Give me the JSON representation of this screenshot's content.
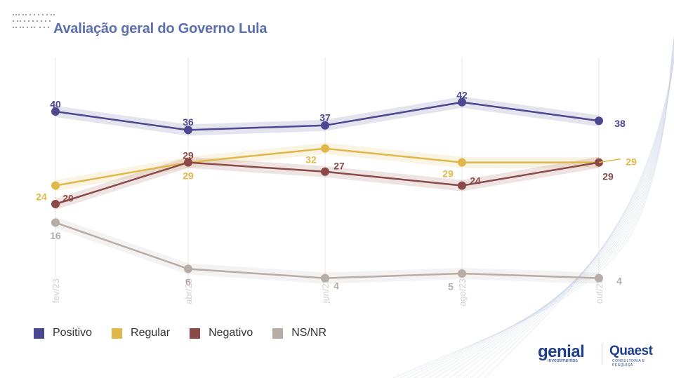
{
  "title": "Avaliação geral do Governo Lula",
  "brand": {
    "genial_name": "genial",
    "genial_sub": "investimentos",
    "quaest_name": "Quaest",
    "quaest_sub": "CONSULTORIA E PESQUISA"
  },
  "colors": {
    "Positivo": "#4b4791",
    "Regular": "#e0b84a",
    "Negativo": "#8b4a48",
    "NS/NR": "#b8aca7",
    "grid": "#e6e6e6",
    "tick": "#cfcfcf",
    "title": "#5b6fae"
  },
  "chart_data": {
    "type": "line",
    "title": "Avaliação geral do Governo Lula",
    "x": [
      "fev/23",
      "abr/23",
      "jun/23",
      "ago/23",
      "out/23"
    ],
    "ylim": [
      0,
      45
    ],
    "grid": "vertical",
    "legend_position": "bottom-left",
    "series": [
      {
        "name": "Positivo",
        "values": [
          40,
          36,
          37,
          42,
          38
        ]
      },
      {
        "name": "Regular",
        "values": [
          24,
          29,
          32,
          29,
          29
        ]
      },
      {
        "name": "Negativo",
        "values": [
          20,
          29,
          27,
          24,
          29
        ]
      },
      {
        "name": "NS/NR",
        "values": [
          16,
          6,
          4,
          5,
          4
        ]
      }
    ]
  }
}
